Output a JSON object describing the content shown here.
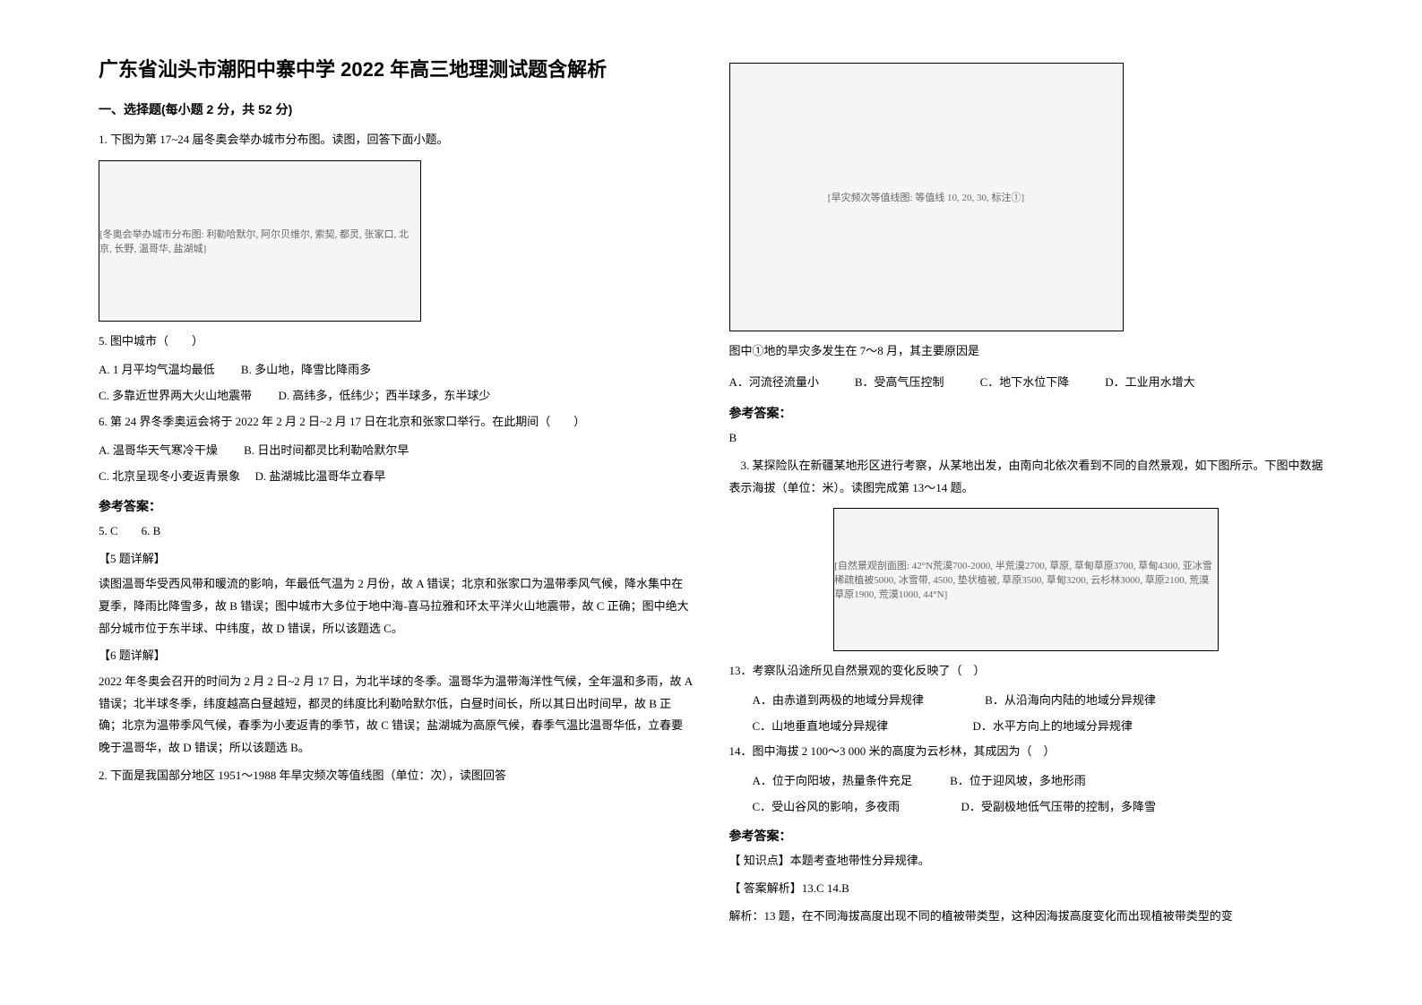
{
  "title": "广东省汕头市潮阳中寨中学 2022 年高三地理测试题含解析",
  "section1": {
    "heading": "一、选择题(每小题 2 分，共 52 分)",
    "q1": {
      "intro": "1. 下图为第 17~24 届冬奥会举办城市分布图。读图，回答下面小题。",
      "figure_caption": "[冬奥会举办城市分布图: 利勒哈默尔, 阿尔贝维尔, 索契, 都灵, 张家口, 北京, 长野, 温哥华, 盐湖城]",
      "q5_stem": "5. 图中城市（　　）",
      "q5_a": "A. 1 月平均气温均最低",
      "q5_b": "B. 多山地，降雪比降雨多",
      "q5_c": "C. 多靠近世界两大火山地震带",
      "q5_d": "D. 高纬多，低纬少；西半球多，东半球少",
      "q6_stem": "6. 第 24 界冬季奥运会将于 2022 年 2 月 2 日~2 月 17 日在北京和张家口举行。在此期间（　　）",
      "q6_a": "A. 温哥华天气寒冷干燥",
      "q6_b": "B. 日出时间都灵比利勒哈默尔早",
      "q6_c": "C. 北京呈现冬小麦返青景象",
      "q6_d": "D. 盐湖城比温哥华立春早",
      "answer_label": "参考答案：",
      "answer": "5. C　　6. B",
      "explain5_label": "【5 题详解】",
      "explain5": "读图温哥华受西风带和暖流的影响，年最低气温为 2 月份，故 A 错误；北京和张家口为温带季风气候，降水集中在夏季，降雨比降雪多，故 B 错误；图中城市大多位于地中海-喜马拉雅和环太平洋火山地震带，故 C 正确；图中绝大部分城市位于东半球、中纬度，故 D 错误，所以该题选 C。",
      "explain6_label": "【6 题详解】",
      "explain6": "2022 年冬奥会召开的时间为 2 月 2 日~2 月 17 日，为北半球的冬季。温哥华为温带海洋性气候，全年温和多雨，故 A 错误；北半球冬季，纬度越高白昼越短，都灵的纬度比利勒哈默尔低，白昼时间长，所以其日出时间早，故 B 正确；北京为温带季风气候，春季为小麦返青的季节，故 C 错误；盐湖城为高原气候，春季气温比温哥华低，立春要晚于温哥华，故 D 错误；所以该题选 B。"
    },
    "q2": {
      "intro": "2. 下面是我国部分地区 1951～1988 年旱灾频次等值线图（单位：次），读图回答"
    }
  },
  "right_col": {
    "figure2_caption": "[旱灾频次等值线图: 等值线 10, 20, 30, 标注①]",
    "q2_sub": "图中①地的旱灾多发生在 7～8 月，其主要原因是",
    "q2_a": "A．河流径流量小",
    "q2_b": "B．受高气压控制",
    "q2_c": "C．地下水位下降",
    "q2_d": "D．工业用水增大",
    "answer_label": "参考答案：",
    "answer": "B",
    "q3": {
      "intro": "3. 某探险队在新疆某地形区进行考察，从某地出发，由南向北依次看到不同的自然景观，如下图所示。下图中数据表示海拔（单位：米）。读图完成第 13～14 题。",
      "figure_caption": "[自然景观剖面图: 42°N荒漠700-2000, 半荒漠2700, 草原, 草甸草原3700, 草甸4300, 亚冰雪稀疏植被5000, 冰雪带, 4500, 垫状植被, 草原3500, 草甸3200, 云杉林3000, 草原2100, 荒漠草原1900, 荒漠1000, 44°N]",
      "q13_stem": "13．考察队沿途所见自然景观的变化反映了（　）",
      "q13_a": "A．由赤道到两极的地域分异规律",
      "q13_b": "B．从沿海向内陆的地域分异规律",
      "q13_c": "C．山地垂直地域分异规律",
      "q13_d": "D．水平方向上的地域分异规律",
      "q14_stem": "14．图中海拔 2 100～3 000 米的高度为云杉林，其成因为（　）",
      "q14_a": "A．位于向阳坡，热量条件充足",
      "q14_b": "B．位于迎风坡，多地形雨",
      "q14_c": "C．受山谷风的影响，多夜雨",
      "q14_d": "D．受副极地低气压带的控制，多降雪",
      "answer_label": "参考答案：",
      "knowledge": "【 知识点】本题考查地带性分异规律。",
      "analysis_label": "【 答案解析】13.C  14.B",
      "analysis": "解析：13 题，在不同海拔高度出现不同的植被带类型，这种因海拔高度变化而出现植被带类型的变"
    }
  }
}
